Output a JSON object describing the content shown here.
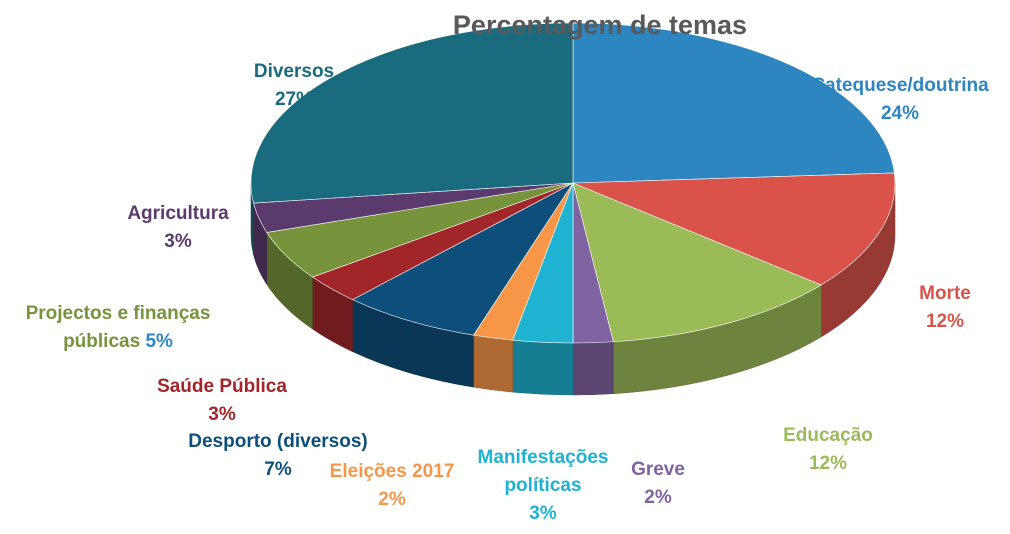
{
  "chart_data": {
    "type": "pie",
    "title": "Percentagem de temas",
    "categories": [
      "Catequese/doutrina",
      "Morte",
      "Educação",
      "Greve",
      "Manifestações políticas",
      "Eleições 2017",
      "Desporto (diversos)",
      "Saúde Pública",
      "Projectos e finanças públicas",
      "Agricultura",
      "Diversos"
    ],
    "values": [
      24,
      12,
      12,
      2,
      3,
      2,
      7,
      3,
      5,
      3,
      27
    ],
    "value_labels": [
      "24%",
      "12%",
      "12%",
      "2%",
      "3%",
      "2%",
      "7%",
      "3%",
      "5%",
      "3%",
      "27%"
    ],
    "colors": [
      "#2e86c1",
      "#d9534a",
      "#9bbb59",
      "#8064a2",
      "#1fb3d1",
      "#f79646",
      "#0d4f7a",
      "#a0262a",
      "#77933c",
      "#5b3a6e",
      "#1a6b7e"
    ]
  }
}
